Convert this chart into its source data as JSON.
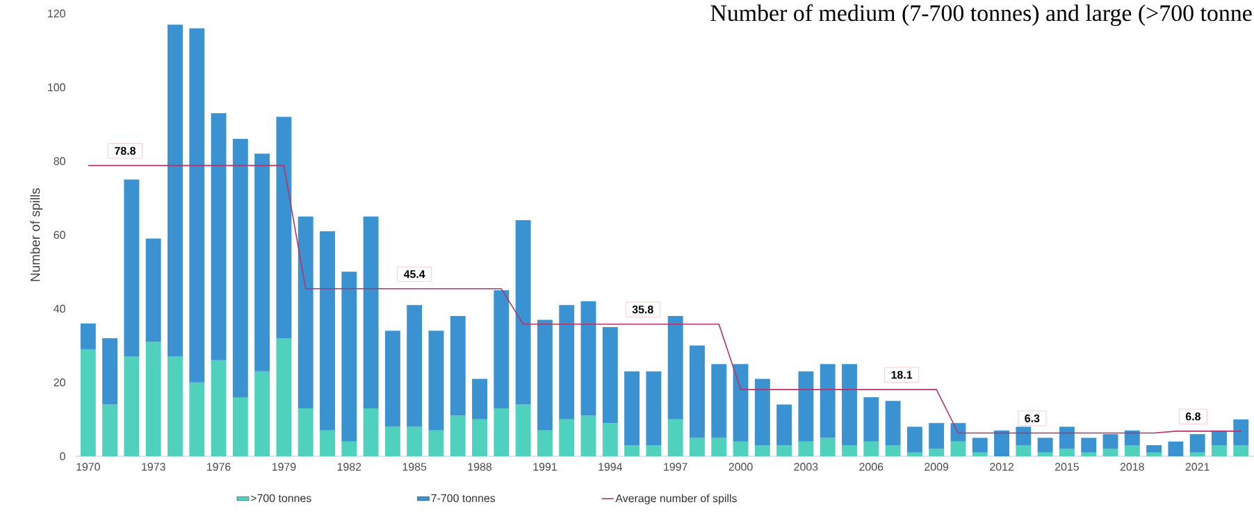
{
  "chart_data": {
    "type": "bar",
    "stacked": true,
    "title": "Number of medium (7-700 tonnes) and large (>700 tonne",
    "ylabel": "Number of spills",
    "x": [
      1970,
      1971,
      1972,
      1973,
      1974,
      1975,
      1976,
      1977,
      1978,
      1979,
      1980,
      1981,
      1982,
      1983,
      1984,
      1985,
      1986,
      1987,
      1988,
      1989,
      1990,
      1991,
      1992,
      1993,
      1994,
      1995,
      1996,
      1997,
      1998,
      1999,
      2000,
      2001,
      2002,
      2003,
      2004,
      2005,
      2006,
      2007,
      2008,
      2009,
      2010,
      2011,
      2012,
      2013,
      2014,
      2015,
      2016,
      2017,
      2018,
      2019,
      2020,
      2021,
      2022,
      2023
    ],
    "series": [
      {
        "name": ">700 tonnes",
        "color": "#4fd1bd",
        "values": [
          29,
          14,
          27,
          31,
          27,
          20,
          26,
          16,
          23,
          32,
          13,
          7,
          4,
          13,
          8,
          8,
          7,
          11,
          10,
          13,
          14,
          7,
          10,
          11,
          9,
          3,
          3,
          10,
          5,
          5,
          4,
          3,
          3,
          4,
          5,
          3,
          4,
          3,
          1,
          2,
          4,
          1,
          0,
          3,
          1,
          2,
          1,
          2,
          3,
          1,
          0,
          1,
          3,
          3
        ]
      },
      {
        "name": "7-700 tonnes",
        "color": "#3a92d0",
        "values": [
          7,
          18,
          48,
          28,
          90,
          96,
          67,
          70,
          59,
          60,
          52,
          54,
          46,
          52,
          26,
          33,
          27,
          27,
          11,
          32,
          50,
          30,
          31,
          31,
          26,
          20,
          20,
          28,
          25,
          20,
          21,
          18,
          11,
          19,
          20,
          22,
          12,
          12,
          7,
          7,
          5,
          4,
          7,
          5,
          4,
          6,
          4,
          4,
          4,
          2,
          4,
          5,
          4,
          7
        ]
      },
      {
        "name": "Average number of spills",
        "type": "line",
        "color": "#b5336b",
        "x": [
          1970,
          1979,
          1980,
          1989,
          1990,
          1999,
          2000,
          2009,
          2010,
          2019,
          2020,
          2023
        ],
        "values": [
          78.8,
          78.8,
          45.4,
          45.4,
          35.8,
          35.8,
          18.1,
          18.1,
          6.3,
          6.3,
          6.8,
          6.8
        ]
      }
    ],
    "xlim": [
      1969.4,
      2023.6
    ],
    "xticks": [
      1970,
      1973,
      1976,
      1979,
      1982,
      1985,
      1988,
      1991,
      1994,
      1997,
      2000,
      2003,
      2006,
      2009,
      2012,
      2015,
      2018,
      2021
    ],
    "ylim": [
      0,
      120
    ],
    "yticks": [
      0,
      20,
      40,
      60,
      80,
      100,
      120
    ],
    "legend": "bottom",
    "annotations": [
      {
        "text": "78.8",
        "x": 1971.7,
        "y": 78.8
      },
      {
        "text": "45.4",
        "x": 1985,
        "y": 45.4
      },
      {
        "text": "35.8",
        "x": 1995.5,
        "y": 35.8
      },
      {
        "text": "18.1",
        "x": 2007.4,
        "y": 18.1
      },
      {
        "text": "6.3",
        "x": 2013.4,
        "y": 6.3
      },
      {
        "text": "6.8",
        "x": 2020.8,
        "y": 6.8
      }
    ]
  }
}
